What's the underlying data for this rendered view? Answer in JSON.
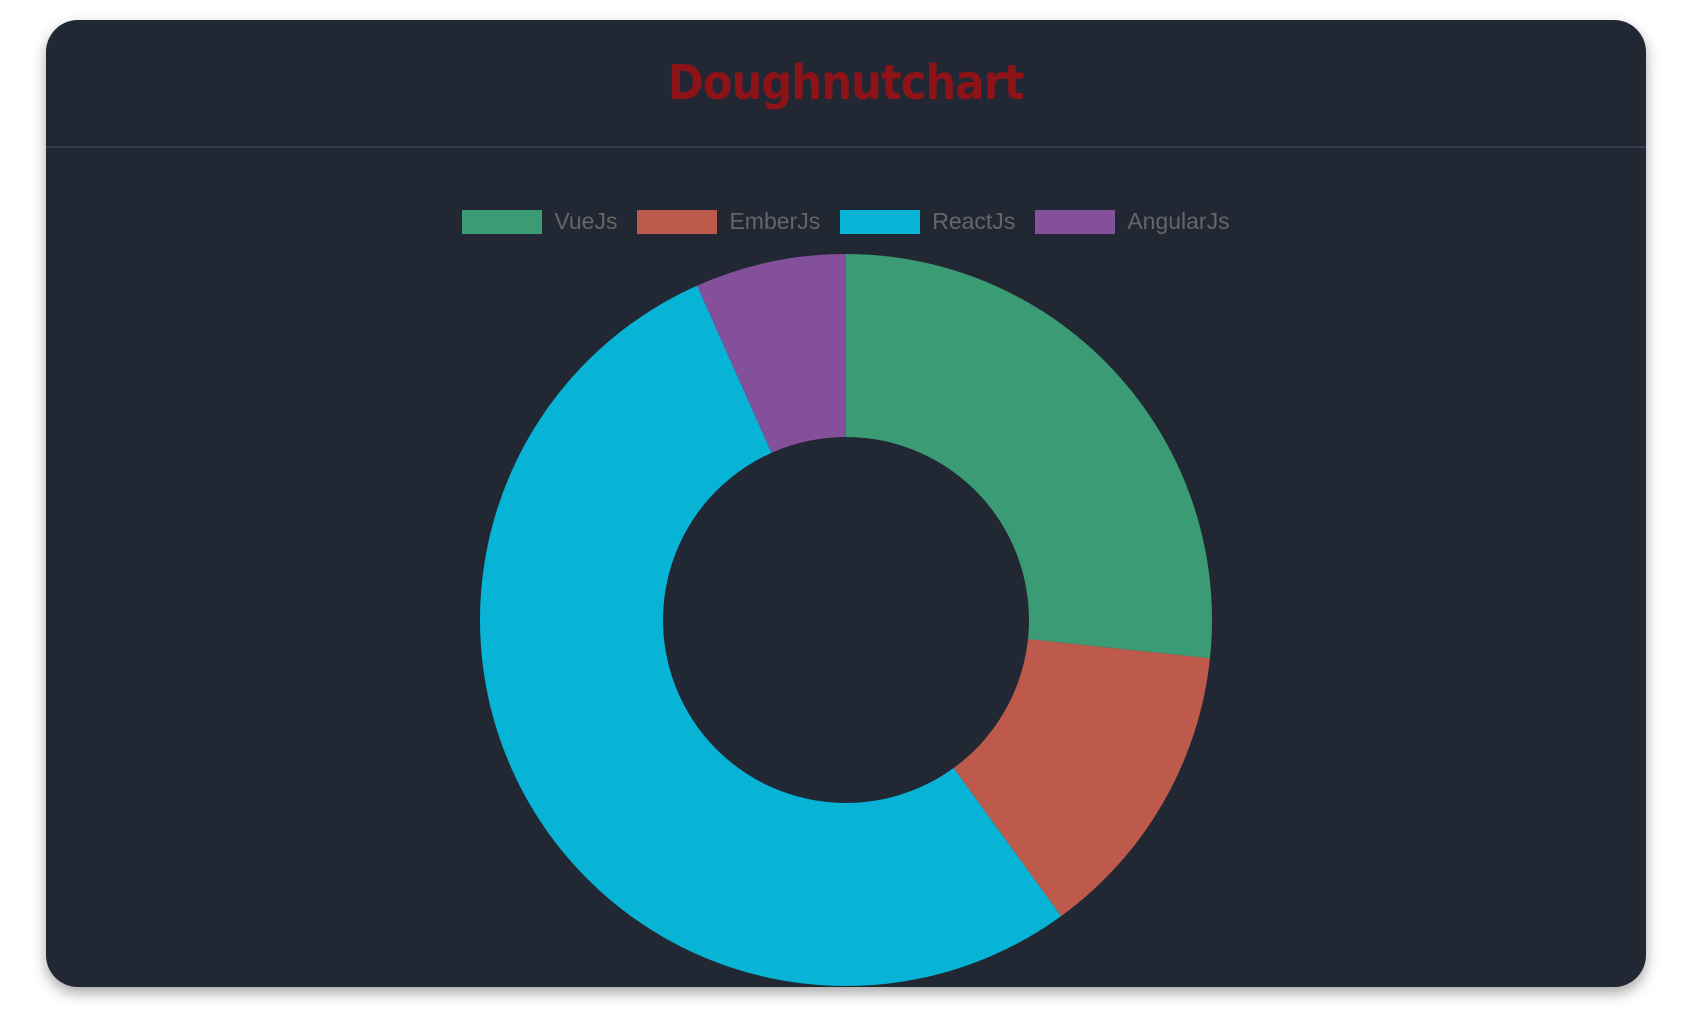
{
  "header": {
    "title": "Doughnutchart"
  },
  "chart_data": {
    "type": "doughnut",
    "categories": [
      "VueJs",
      "EmberJs",
      "ReactJs",
      "AngularJs"
    ],
    "values": [
      40,
      20,
      80,
      10
    ],
    "colors": [
      "#3b9b74",
      "#bd5a4b",
      "#07b4d6",
      "#84509c"
    ],
    "legend_position": "top"
  }
}
